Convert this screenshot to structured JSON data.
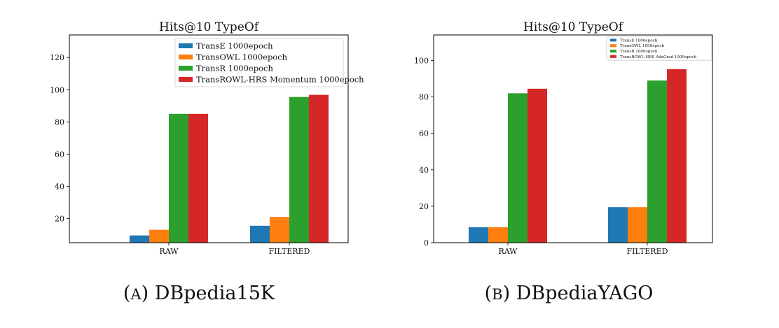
{
  "captions": [
    {
      "letter": "A",
      "name": "DBpedia15K"
    },
    {
      "letter": "B",
      "name": "DBpediaYAGO"
    }
  ],
  "chart_data": [
    {
      "type": "bar",
      "title": "Hits@10 TypeOf",
      "categories": [
        "RAW",
        "FILTERED"
      ],
      "series": [
        {
          "name": "TransE 1000epoch",
          "color": "#1f77b4",
          "values": [
            9.5,
            15.5
          ]
        },
        {
          "name": "TransOWL 1000epoch",
          "color": "#ff7f0e",
          "values": [
            13,
            21
          ]
        },
        {
          "name": "TransR 1000epoch",
          "color": "#2ca02c",
          "values": [
            85,
            95.5
          ]
        },
        {
          "name": "TransROWL-HRS Momentum 1000epoch",
          "color": "#d62728",
          "values": [
            85,
            96.8
          ]
        }
      ],
      "ylim": [
        5,
        134
      ],
      "yticks": [
        20,
        40,
        60,
        80,
        100,
        120
      ],
      "legend": "top-right",
      "grid": false
    },
    {
      "type": "bar",
      "title": "Hits@10 TypeOf",
      "categories": [
        "RAW",
        "FILTERED"
      ],
      "series": [
        {
          "name": "TransE 1000epoch",
          "color": "#1f77b4",
          "values": [
            8.5,
            19.5
          ]
        },
        {
          "name": "TransOWL 1000epoch",
          "color": "#ff7f0e",
          "values": [
            8.5,
            19.5
          ]
        },
        {
          "name": "TransR 1000epoch",
          "color": "#2ca02c",
          "values": [
            82,
            89
          ]
        },
        {
          "name": "TransROWL-HRS AdaGrad 1000epoch",
          "color": "#d62728",
          "values": [
            84.5,
            95.2
          ]
        }
      ],
      "ylim": [
        0,
        114
      ],
      "yticks": [
        0,
        20,
        40,
        60,
        80,
        100
      ],
      "legend": "top-right",
      "grid": false
    }
  ]
}
